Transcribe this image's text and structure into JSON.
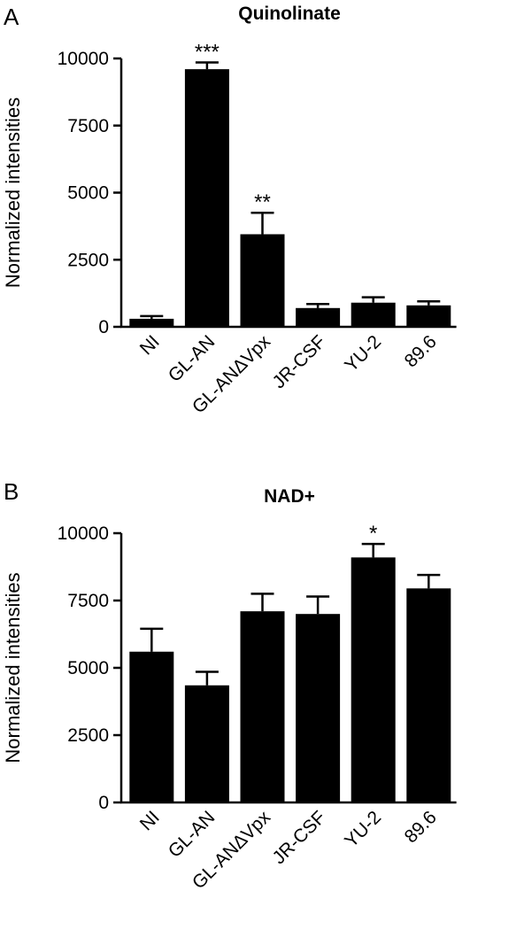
{
  "chart_data": [
    {
      "panel": "A",
      "type": "bar",
      "title": "Quinolinate",
      "ylabel": "Normalized intensities",
      "xlabel": "",
      "ylim": [
        0,
        10000
      ],
      "yticks": [
        0,
        2500,
        5000,
        7500,
        10000
      ],
      "categories": [
        "NI",
        "GL-AN",
        "GL-ANΔVpx",
        "JR-CSF",
        "YU-2",
        "89.6"
      ],
      "values": [
        300,
        9600,
        3450,
        700,
        900,
        800
      ],
      "errors": [
        100,
        250,
        800,
        150,
        200,
        150
      ],
      "annotations": [
        "",
        "***",
        "**",
        "",
        "",
        ""
      ]
    },
    {
      "panel": "B",
      "type": "bar",
      "title": "NAD+",
      "ylabel": "Normalized intensities",
      "xlabel": "",
      "ylim": [
        0,
        10000
      ],
      "yticks": [
        0,
        2500,
        5000,
        7500,
        10000
      ],
      "categories": [
        "NI",
        "GL-AN",
        "GL-ANΔVpx",
        "JR-CSF",
        "YU-2",
        "89.6"
      ],
      "values": [
        5600,
        4350,
        7100,
        7000,
        9100,
        7950
      ],
      "errors": [
        850,
        500,
        650,
        650,
        500,
        500
      ],
      "annotations": [
        "",
        "",
        "",
        "",
        "*",
        ""
      ]
    }
  ]
}
